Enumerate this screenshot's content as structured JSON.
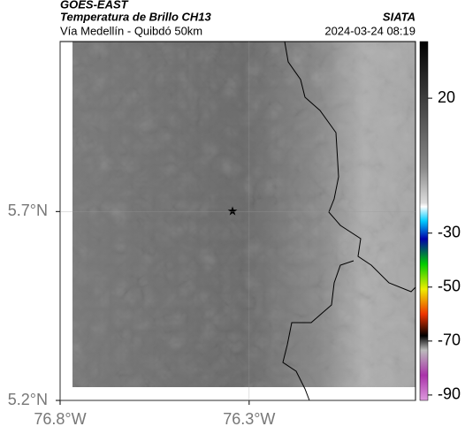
{
  "header": {
    "source": "GOES-EAST",
    "product": "Temperatura de Brillo CH13",
    "agency": "SIATA",
    "region": "Vía Medellín - Quibdó 50km",
    "timestamp": "2024-03-24 08:19"
  },
  "map": {
    "xlim": [
      -76.8,
      -75.86
    ],
    "ylim": [
      5.2,
      6.15
    ],
    "xticks": [
      {
        "value": -76.8,
        "label": "76.8°W"
      },
      {
        "value": -76.3,
        "label": "76.3°W"
      }
    ],
    "yticks": [
      {
        "value": 5.2,
        "label": "5.2°N"
      },
      {
        "value": 5.7,
        "label": "5.7°N"
      }
    ]
  },
  "colorbar": {
    "lim": [
      -92,
      41
    ],
    "ticks": [
      20,
      -30,
      -50,
      -70,
      -90
    ]
  }
}
